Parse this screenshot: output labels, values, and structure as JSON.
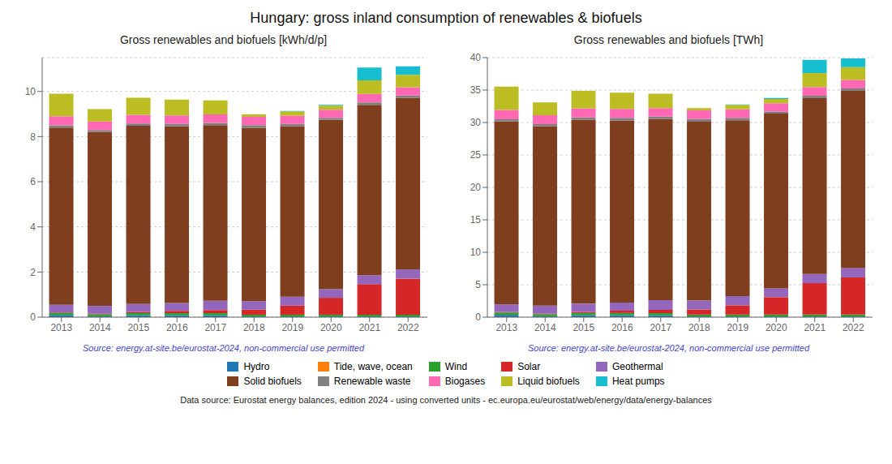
{
  "title": "Hungary: gross inland consumption of renewables & biofuels",
  "legend": "bottom",
  "annotations": [
    "Data source: Eurostat energy balances, edition 2024 - using converted units - ec.europa.eu/eurostat/web/energy/data/energy-balances"
  ],
  "chart_data": [
    {
      "type": "bar",
      "title": "Gross renewables and biofuels [kWh/d/p]",
      "stacked": true,
      "grid": true,
      "categories": [
        "2013",
        "2014",
        "2015",
        "2016",
        "2017",
        "2018",
        "2019",
        "2020",
        "2021",
        "2022"
      ],
      "series": [
        {
          "name": "Hydro",
          "color": "#1f77b4",
          "values": [
            0.1,
            0.04,
            0.09,
            0.09,
            0.09,
            0.03,
            0.03,
            0.03,
            0.03,
            0.03
          ]
        },
        {
          "name": "Tide, wave, ocean",
          "color": "#ff7f0e",
          "values": [
            0.0,
            0.0,
            0.0,
            0.0,
            0.0,
            0.0,
            0.0,
            0.0,
            0.0,
            0.0
          ]
        },
        {
          "name": "Wind",
          "color": "#2ca02c",
          "values": [
            0.1,
            0.09,
            0.09,
            0.09,
            0.09,
            0.08,
            0.08,
            0.08,
            0.08,
            0.08
          ]
        },
        {
          "name": "Solar",
          "color": "#d62728",
          "values": [
            0.02,
            0.02,
            0.05,
            0.1,
            0.13,
            0.22,
            0.4,
            0.75,
            1.35,
            1.6
          ]
        },
        {
          "name": "Geothermal",
          "color": "#9467bd",
          "values": [
            0.33,
            0.35,
            0.35,
            0.35,
            0.42,
            0.38,
            0.4,
            0.38,
            0.4,
            0.41
          ]
        },
        {
          "name": "Solid biofuels",
          "color": "#7f3f1f",
          "values": [
            7.85,
            7.7,
            7.9,
            7.82,
            7.78,
            7.68,
            7.55,
            7.5,
            7.55,
            7.6
          ]
        },
        {
          "name": "Renewable waste",
          "color": "#808080",
          "values": [
            0.1,
            0.09,
            0.1,
            0.11,
            0.1,
            0.12,
            0.1,
            0.09,
            0.1,
            0.1
          ]
        },
        {
          "name": "Biogases",
          "color": "#ff69b4",
          "values": [
            0.4,
            0.38,
            0.39,
            0.38,
            0.37,
            0.37,
            0.37,
            0.36,
            0.38,
            0.37
          ]
        },
        {
          "name": "Liquid biofuels",
          "color": "#bcbd22",
          "values": [
            1.0,
            0.55,
            0.75,
            0.7,
            0.62,
            0.1,
            0.19,
            0.18,
            0.6,
            0.55
          ]
        },
        {
          "name": "Heat pumps",
          "color": "#17becf",
          "values": [
            0.0,
            0.0,
            0.0,
            0.0,
            0.0,
            0.0,
            0.02,
            0.04,
            0.57,
            0.37
          ]
        }
      ],
      "ylim": [
        0,
        11.5
      ],
      "yticks": [
        0,
        2,
        4,
        6,
        8,
        10
      ],
      "annotations": [
        "Source: energy.at-site.be/eurostat-2024, non-commercial use permitted"
      ]
    },
    {
      "type": "bar",
      "title": "Gross renewables and biofuels [TWh]",
      "stacked": true,
      "grid": true,
      "categories": [
        "2013",
        "2014",
        "2015",
        "2016",
        "2017",
        "2018",
        "2019",
        "2020",
        "2021",
        "2022"
      ],
      "series": [
        {
          "name": "Hydro",
          "color": "#1f77b4",
          "values": [
            0.36,
            0.14,
            0.32,
            0.32,
            0.32,
            0.11,
            0.11,
            0.11,
            0.11,
            0.11
          ]
        },
        {
          "name": "Tide, wave, ocean",
          "color": "#ff7f0e",
          "values": [
            0.0,
            0.0,
            0.0,
            0.0,
            0.0,
            0.0,
            0.0,
            0.0,
            0.0,
            0.0
          ]
        },
        {
          "name": "Wind",
          "color": "#2ca02c",
          "values": [
            0.36,
            0.32,
            0.32,
            0.32,
            0.32,
            0.29,
            0.29,
            0.29,
            0.29,
            0.29
          ]
        },
        {
          "name": "Solar",
          "color": "#d62728",
          "values": [
            0.07,
            0.07,
            0.18,
            0.36,
            0.47,
            0.79,
            1.43,
            2.69,
            4.84,
            5.73
          ]
        },
        {
          "name": "Geothermal",
          "color": "#9467bd",
          "values": [
            1.18,
            1.26,
            1.26,
            1.26,
            1.51,
            1.36,
            1.43,
            1.36,
            1.43,
            1.47
          ]
        },
        {
          "name": "Solid biofuels",
          "color": "#7f3f1f",
          "values": [
            28.18,
            27.64,
            28.35,
            28.06,
            27.92,
            27.56,
            27.09,
            26.92,
            27.09,
            27.28
          ]
        },
        {
          "name": "Renewable waste",
          "color": "#808080",
          "values": [
            0.36,
            0.32,
            0.36,
            0.4,
            0.36,
            0.43,
            0.36,
            0.32,
            0.36,
            0.36
          ]
        },
        {
          "name": "Biogases",
          "color": "#ff69b4",
          "values": [
            1.44,
            1.36,
            1.4,
            1.36,
            1.33,
            1.33,
            1.33,
            1.29,
            1.36,
            1.33
          ]
        },
        {
          "name": "Liquid biofuels",
          "color": "#bcbd22",
          "values": [
            3.59,
            1.97,
            2.69,
            2.51,
            2.22,
            0.36,
            0.68,
            0.65,
            2.15,
            1.97
          ]
        },
        {
          "name": "Heat pumps",
          "color": "#17becf",
          "values": [
            0.0,
            0.0,
            0.0,
            0.0,
            0.0,
            0.0,
            0.07,
            0.14,
            2.04,
            1.33
          ]
        }
      ],
      "ylim": [
        0,
        40
      ],
      "yticks": [
        0,
        5,
        10,
        15,
        20,
        25,
        30,
        35,
        40
      ],
      "annotations": [
        "Source: energy.at-site.be/eurostat-2024, non-commercial use permitted"
      ]
    }
  ]
}
